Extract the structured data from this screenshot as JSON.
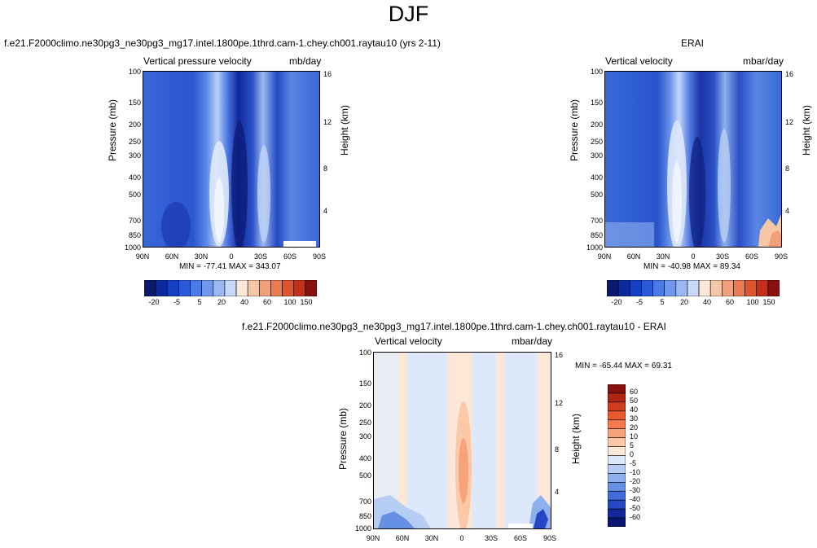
{
  "page_title": "DJF",
  "panels": {
    "model": {
      "title": "f.e21.F2000climo.ne30pg3_ne30pg3_mg17.intel.1800pe.1thrd.cam-1.chey.ch001.raytau10 (yrs 2-11)",
      "left_label": "Vertical pressure velocity",
      "right_label": "mb/day",
      "stats": "MIN = -77.41   MAX = 343.07"
    },
    "obs": {
      "title": "ERAI",
      "left_label": "Vertical velocity",
      "right_label": "mbar/day",
      "stats": "MIN = -40.98   MAX = 89.34"
    },
    "diff": {
      "title": "f.e21.F2000climo.ne30pg3_ne30pg3_mg17.intel.1800pe.1thrd.cam-1.chey.ch001.raytau10 - ERAI",
      "left_label": "Vertical velocity",
      "right_label": "mbar/day",
      "stats": "MIN = -65.44   MAX =  69.31"
    }
  },
  "axes": {
    "ylabel": "Pressure (mb)",
    "ylabel_right": "Height (km)",
    "pressure_ticks": [
      "100",
      "150",
      "200",
      "250",
      "300",
      "400",
      "500",
      "700",
      "850",
      "1000"
    ],
    "height_ticks": [
      "16",
      "12",
      "8",
      "4"
    ],
    "lat_ticks": [
      "90N",
      "60N",
      "30N",
      "0",
      "30S",
      "60S",
      "90S"
    ]
  },
  "colorbar_abs": {
    "tick_labels": [
      "-20",
      "-5",
      "5",
      "20",
      "40",
      "60",
      "100",
      "150"
    ],
    "colors": [
      "#0b1a6e",
      "#0c2a9a",
      "#1540c4",
      "#2a5ad8",
      "#4a7ae4",
      "#6f98ec",
      "#9bb8f2",
      "#c7d8f8",
      "#fbe8d8",
      "#f7c6a4",
      "#f2a07a",
      "#ec7a52",
      "#e05430",
      "#c4301c",
      "#8a1010"
    ]
  },
  "colorbar_diff": {
    "tick_labels": [
      "60",
      "50",
      "40",
      "30",
      "20",
      "10",
      "5",
      "0",
      "-5",
      "-10",
      "-20",
      "-30",
      "-40",
      "-50",
      "-60"
    ],
    "colors": [
      "#8a1010",
      "#b02414",
      "#d03e20",
      "#e85a2c",
      "#f27a4c",
      "#f7a27a",
      "#fbc8a8",
      "#fde8d8",
      "#dde9fa",
      "#b6cdf3",
      "#8eb0ec",
      "#6690e4",
      "#3f6cda",
      "#2448c4",
      "#13289c",
      "#0a1670"
    ]
  },
  "chart_data": [
    {
      "type": "heatmap",
      "title": "f.e21.F2000climo.ne30pg3_ne30pg3_mg17.intel.1800pe.1thrd.cam-1.chey.ch001.raytau10 (yrs 2-11)",
      "variable": "Vertical pressure velocity",
      "units": "mb/day",
      "xlabel": "",
      "ylabel": "Pressure (mb)",
      "y2label": "Height (km)",
      "x_ticks": [
        "90N",
        "60N",
        "30N",
        "0",
        "30S",
        "60S",
        "90S"
      ],
      "y_ticks": [
        100,
        150,
        200,
        250,
        300,
        400,
        500,
        700,
        850,
        1000
      ],
      "y_scale": "log",
      "y_reversed": true,
      "min": -77.41,
      "max": 343.07,
      "colorbar_levels": [
        -20,
        -5,
        5,
        20,
        40,
        60,
        100,
        150
      ]
    },
    {
      "type": "heatmap",
      "title": "ERAI",
      "variable": "Vertical velocity",
      "units": "mbar/day",
      "xlabel": "",
      "ylabel": "Pressure (mb)",
      "y2label": "Height (km)",
      "x_ticks": [
        "90N",
        "60N",
        "30N",
        "0",
        "30S",
        "60S",
        "90S"
      ],
      "y_ticks": [
        100,
        150,
        200,
        250,
        300,
        400,
        500,
        700,
        850,
        1000
      ],
      "y_scale": "log",
      "y_reversed": true,
      "min": -40.98,
      "max": 89.34,
      "colorbar_levels": [
        -20,
        -5,
        5,
        20,
        40,
        60,
        100,
        150
      ]
    },
    {
      "type": "heatmap",
      "title": "f.e21.F2000climo.ne30pg3_ne30pg3_mg17.intel.1800pe.1thrd.cam-1.chey.ch001.raytau10 - ERAI",
      "variable": "Vertical velocity",
      "units": "mbar/day",
      "xlabel": "",
      "ylabel": "Pressure (mb)",
      "y2label": "Height (km)",
      "x_ticks": [
        "90N",
        "60N",
        "30N",
        "0",
        "30S",
        "60S",
        "90S"
      ],
      "y_ticks": [
        100,
        150,
        200,
        250,
        300,
        400,
        500,
        700,
        850,
        1000
      ],
      "y_scale": "log",
      "y_reversed": true,
      "min": -65.44,
      "max": 69.31,
      "colorbar_levels": [
        60,
        50,
        40,
        30,
        20,
        10,
        5,
        0,
        -5,
        -10,
        -20,
        -30,
        -40,
        -50,
        -60
      ]
    }
  ]
}
